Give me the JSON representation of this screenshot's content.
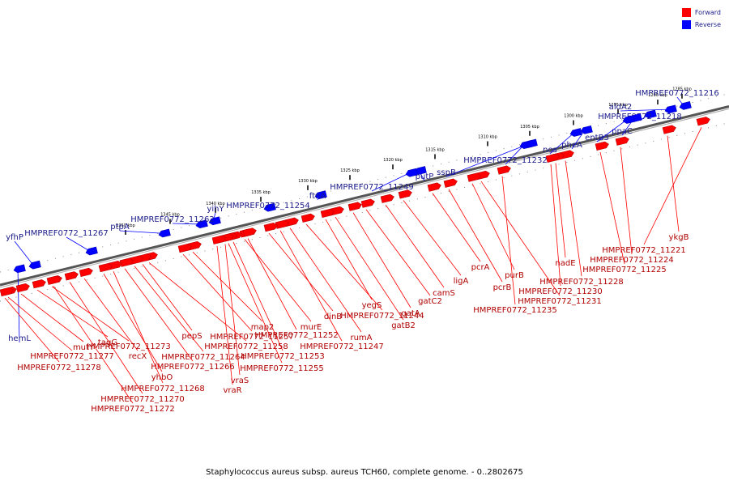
{
  "legend": {
    "forward_label": "Forward",
    "reverse_label": "Reverse",
    "forward_color": "#ff0000",
    "reverse_color": "#0000ff"
  },
  "caption": "Staphylococcus aureus subsp. aureus TCH60, complete genome. - 0..2802675",
  "ticks": [
    "1285 kbp",
    "1290 kbp",
    "1295 kbp",
    "1300 kbp",
    "1305 kbp",
    "1310 kbp",
    "1315 kbp",
    "1320 kbp",
    "1325 kbp",
    "1330 kbp",
    "1335 kbp",
    "1340 kbp",
    "1345 kbp",
    "1350 kbp"
  ],
  "reverse_genes": [
    "HMPREF0772_11216",
    "aldA2",
    "HMPREF0772_11218",
    "ppaC",
    "entB3",
    "pheA",
    "nos",
    "HMPREF0772_11232",
    "sspB",
    "putP",
    "HMPREF0772_11249",
    "ftnA",
    "HMPREF0772_11254",
    "yihY",
    "HMPREF0772_11262",
    "ptpA",
    "HMPREF0772_11267",
    "yfhP",
    "hemL"
  ],
  "forward_genes": [
    "ykgB",
    "HMPREF0772_11221",
    "HMPREF0772_11224",
    "HMPREF0772_11225",
    "HMPREF0772_11228",
    "nadE",
    "HMPREF0772_11230",
    "HMPREF0772_11231",
    "HMPREF0772_11235",
    "purB",
    "pcrB",
    "pcrA",
    "ligA",
    "camS",
    "gatC2",
    "gatA",
    "gatB2",
    "yegS",
    "HMPREF0772_11244",
    "rumA",
    "HMPREF0772_11247",
    "dinB",
    "murE",
    "HMPREF0772_11252",
    "HMPREF0772_11253",
    "HMPREF0772_11255",
    "vraS",
    "vraR",
    "map2",
    "HMPREF0772_11257",
    "HMPREF0772_11258",
    "pepS",
    "HMPREF0772_11264",
    "HMPREF0772_11266",
    "HMPREF0772_11268",
    "yhbO",
    "recX",
    "HMPREF0772_11270",
    "HMPREF0772_11272",
    "HMPREF0772_11273",
    "tagG",
    "mutY",
    "HMPREF0772_11277",
    "HMPREF0772_11278"
  ]
}
